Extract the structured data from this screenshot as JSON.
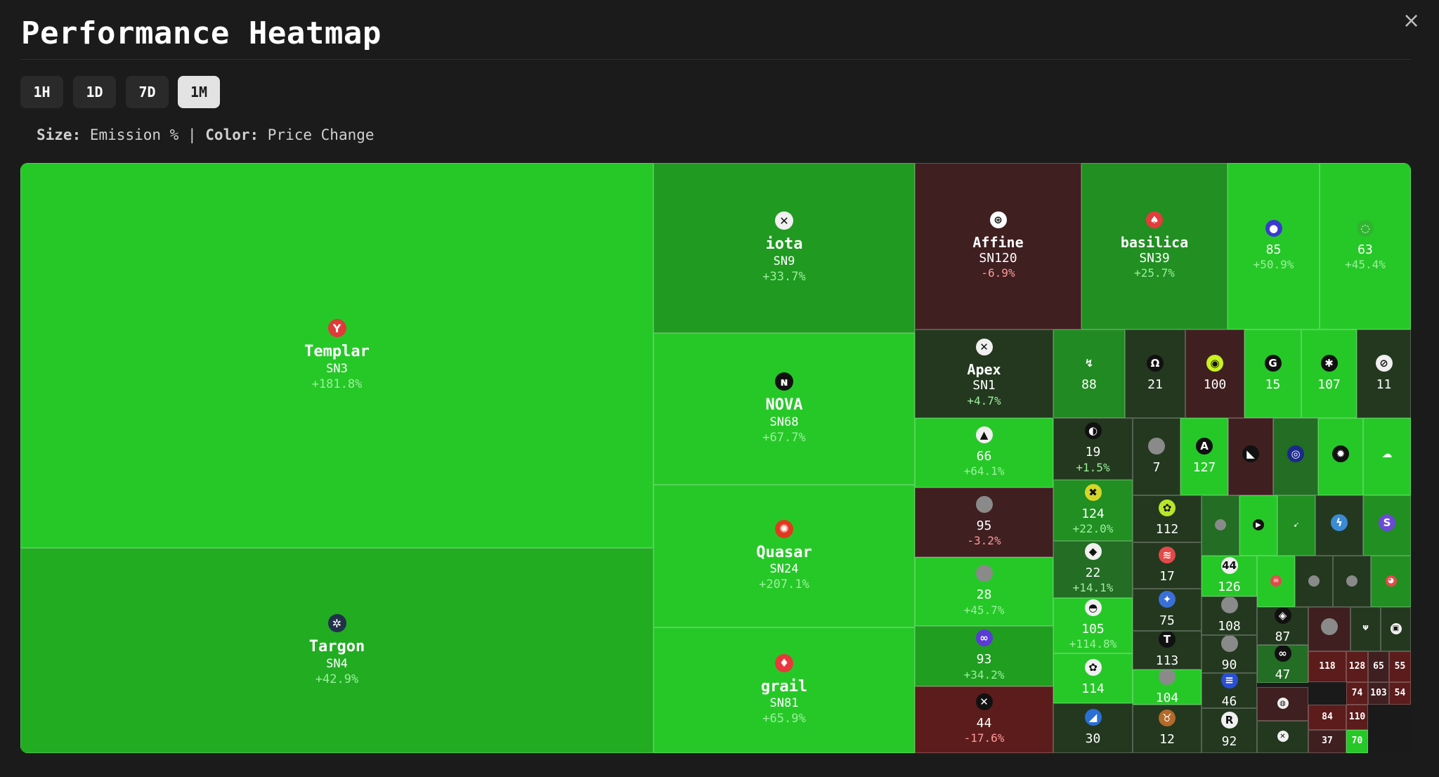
{
  "header": {
    "title": "Performance Heatmap",
    "close_label": "×"
  },
  "timeframes": [
    {
      "label": "1H",
      "active": false
    },
    {
      "label": "1D",
      "active": false
    },
    {
      "label": "7D",
      "active": false
    },
    {
      "label": "1M",
      "active": true
    }
  ],
  "legend": {
    "size_key": "Size:",
    "size_value": "Emission %",
    "separator": "|",
    "color_key": "Color:",
    "color_value": "Price Change"
  },
  "colors": {
    "pos_strong": "#26c828",
    "pos_mid": "#1f9e20",
    "pos_dark": "#236d24",
    "neutral_dark": "#23381f",
    "neg": "#3f1f20",
    "neg_strong": "#5c1c1c",
    "pct_pos": "#9cf09c",
    "pct_neg": "#ff9a9a"
  },
  "tiles": [
    {
      "id": "3",
      "name": "Templar",
      "sn": "SN3",
      "change": "+181.8%",
      "color": "#26c828",
      "icon": "templar-logo-icon",
      "glyph": "Y",
      "icon_bg": "#e03a3a"
    },
    {
      "id": "4",
      "name": "Targon",
      "sn": "SN4",
      "change": "+42.9%",
      "color": "#21ac22",
      "icon": "targon-logo-icon",
      "glyph": "✲",
      "icon_bg": "#22314a"
    },
    {
      "id": "9",
      "name": "iota",
      "sn": "SN9",
      "change": "+33.7%",
      "color": "#209a21",
      "icon": "iota-logo-icon",
      "glyph": "✕",
      "icon_bg": "#f0f0f0"
    },
    {
      "id": "68",
      "name": "NOVA",
      "sn": "SN68",
      "change": "+67.7%",
      "color": "#26c828",
      "icon": "nova-logo-icon",
      "glyph": "ɴ",
      "icon_bg": "#111111"
    },
    {
      "id": "24",
      "name": "Quasar",
      "sn": "SN24",
      "change": "+207.1%",
      "color": "#26c828",
      "icon": "quasar-logo-icon",
      "glyph": "✺",
      "icon_bg": "#e0391f"
    },
    {
      "id": "81",
      "name": "grail",
      "sn": "SN81",
      "change": "+65.9%",
      "color": "#26c828",
      "icon": "grail-logo-icon",
      "glyph": "♦",
      "icon_bg": "#e8383d"
    },
    {
      "id": "120",
      "name": "Affine",
      "sn": "SN120",
      "change": "-6.9%",
      "color": "#3f1f20",
      "icon": "affine-logo-icon",
      "glyph": "⊛",
      "icon_bg": "#ffffff"
    },
    {
      "id": "39",
      "name": "basilica",
      "sn": "SN39",
      "change": "+25.7%",
      "color": "#218f22",
      "icon": "basilica-logo-icon",
      "glyph": "♠",
      "icon_bg": "#e23c3c"
    },
    {
      "id": "85",
      "name": "",
      "sn": "85",
      "change": "+50.9%",
      "color": "#26c828",
      "icon": "subnet-85-icon",
      "glyph": "●",
      "icon_bg": "#3a3ad0"
    },
    {
      "id": "63",
      "name": "",
      "sn": "63",
      "change": "+45.4%",
      "color": "#26c828",
      "icon": "subnet-63-icon",
      "glyph": "◌",
      "icon_bg": "#2fb52f"
    },
    {
      "id": "1",
      "name": "Apex",
      "sn": "SN1",
      "change": "+4.7%",
      "color": "#23381f",
      "icon": "apex-logo-icon",
      "glyph": "✕",
      "icon_bg": "#f0f0f0"
    },
    {
      "id": "88",
      "name": "",
      "sn": "88",
      "change": "",
      "color": "#218a22",
      "icon": "subnet-88-icon",
      "glyph": "↯",
      "icon_bg": "transparent"
    },
    {
      "id": "21",
      "name": "",
      "sn": "21",
      "change": "",
      "color": "#23381f",
      "icon": "subnet-21-icon",
      "glyph": "Ω",
      "icon_bg": "#111111"
    },
    {
      "id": "100",
      "name": "",
      "sn": "100",
      "change": "",
      "color": "#3f1f20",
      "icon": "subnet-100-icon",
      "glyph": "◉",
      "icon_bg": "#c9f21f"
    },
    {
      "id": "15",
      "name": "",
      "sn": "15",
      "change": "",
      "color": "#26c828",
      "icon": "subnet-15-icon",
      "glyph": "G",
      "icon_bg": "#111111"
    },
    {
      "id": "107",
      "name": "",
      "sn": "107",
      "change": "",
      "color": "#26c828",
      "icon": "subnet-107-icon",
      "glyph": "✱",
      "icon_bg": "#111111"
    },
    {
      "id": "11",
      "name": "",
      "sn": "11",
      "change": "",
      "color": "#23381f",
      "icon": "subnet-11-icon",
      "glyph": "⊘",
      "icon_bg": "#f0f0f0"
    },
    {
      "id": "66",
      "name": "",
      "sn": "66",
      "change": "+64.1%",
      "color": "#26c828",
      "icon": "subnet-66-icon",
      "glyph": "▲",
      "icon_bg": "#f0f0f0"
    },
    {
      "id": "95",
      "name": "",
      "sn": "95",
      "change": "-3.2%",
      "color": "#3f1f20",
      "icon": "subnet-95-icon",
      "glyph": "",
      "icon_bg": "#8a8a8a"
    },
    {
      "id": "28",
      "name": "",
      "sn": "28",
      "change": "+45.7%",
      "color": "#26c828",
      "icon": "subnet-28-icon",
      "glyph": "",
      "icon_bg": "#8a8a8a"
    },
    {
      "id": "93",
      "name": "",
      "sn": "93",
      "change": "+34.2%",
      "color": "#1f9e20",
      "icon": "subnet-93-icon",
      "glyph": "∞",
      "icon_bg": "#5b3bd6"
    },
    {
      "id": "44",
      "name": "",
      "sn": "44",
      "change": "-17.6%",
      "color": "#5c1c1c",
      "icon": "subnet-44-icon",
      "glyph": "✕",
      "icon_bg": "#111111"
    },
    {
      "id": "19",
      "name": "",
      "sn": "19",
      "change": "+1.5%",
      "color": "#23381f",
      "icon": "subnet-19-icon",
      "glyph": "◐",
      "icon_bg": "#111111"
    },
    {
      "id": "124",
      "name": "",
      "sn": "124",
      "change": "+22.0%",
      "color": "#218f22",
      "icon": "subnet-124-icon",
      "glyph": "✖",
      "icon_bg": "#d6d62a"
    },
    {
      "id": "22",
      "name": "",
      "sn": "22",
      "change": "+14.1%",
      "color": "#236d24",
      "icon": "subnet-22-icon",
      "glyph": "◆",
      "icon_bg": "#f0f0f0"
    },
    {
      "id": "105",
      "name": "",
      "sn": "105",
      "change": "+114.8%",
      "color": "#26c828",
      "icon": "subnet-105-icon",
      "glyph": "◓",
      "icon_bg": "#f0f0f0"
    },
    {
      "id": "114",
      "name": "",
      "sn": "114",
      "change": "",
      "color": "#26c828",
      "icon": "subnet-114-icon",
      "glyph": "✿",
      "icon_bg": "#f0f0f0"
    },
    {
      "id": "30",
      "name": "",
      "sn": "30",
      "change": "",
      "color": "#23381f",
      "icon": "subnet-30-icon",
      "glyph": "◢",
      "icon_bg": "#2a6fd6"
    },
    {
      "id": "7",
      "name": "",
      "sn": "7",
      "change": "",
      "color": "#23381f",
      "icon": "subnet-7-icon",
      "glyph": "",
      "icon_bg": "#8a8a8a"
    },
    {
      "id": "127",
      "name": "",
      "sn": "127",
      "change": "",
      "color": "#26c828",
      "icon": "subnet-127-icon",
      "glyph": "A",
      "icon_bg": "#111111"
    },
    {
      "id": "112",
      "name": "",
      "sn": "112",
      "change": "",
      "color": "#23381f",
      "icon": "subnet-112-icon",
      "glyph": "✿",
      "icon_bg": "#b8e62a"
    },
    {
      "id": "17",
      "name": "",
      "sn": "17",
      "change": "",
      "color": "#23381f",
      "icon": "subnet-17-icon",
      "glyph": "≋",
      "icon_bg": "#e24a4a"
    },
    {
      "id": "75",
      "name": "",
      "sn": "75",
      "change": "",
      "color": "#23381f",
      "icon": "subnet-75-icon",
      "glyph": "✦",
      "icon_bg": "#3a6fd6"
    },
    {
      "id": "113",
      "name": "",
      "sn": "113",
      "change": "",
      "color": "#23381f",
      "icon": "subnet-113-icon",
      "glyph": "T",
      "icon_bg": "#111111"
    },
    {
      "id": "104",
      "name": "",
      "sn": "104",
      "change": "",
      "color": "#26c828",
      "icon": "subnet-104-icon",
      "glyph": "",
      "icon_bg": "#8a8a8a"
    },
    {
      "id": "12",
      "name": "",
      "sn": "12",
      "change": "",
      "color": "#23381f",
      "icon": "subnet-12-icon",
      "glyph": "♉",
      "icon_bg": "#b36a2a"
    },
    {
      "id": "126",
      "name": "",
      "sn": "126",
      "change": "",
      "color": "#26c828",
      "icon": "subnet-126-icon",
      "glyph": "44",
      "icon_bg": "#f0f0f0"
    },
    {
      "id": "108",
      "name": "",
      "sn": "108",
      "change": "",
      "color": "#23381f",
      "icon": "subnet-108-icon",
      "glyph": "",
      "icon_bg": "#8a8a8a"
    },
    {
      "id": "90",
      "name": "",
      "sn": "90",
      "change": "",
      "color": "#23381f",
      "icon": "subnet-90-icon",
      "glyph": "",
      "icon_bg": "#8a8a8a"
    },
    {
      "id": "46",
      "name": "",
      "sn": "46",
      "change": "",
      "color": "#23381f",
      "icon": "subnet-46-icon",
      "glyph": "≡",
      "icon_bg": "#2a4fd6"
    },
    {
      "id": "92",
      "name": "",
      "sn": "92",
      "change": "",
      "color": "#23381f",
      "icon": "subnet-92-icon",
      "glyph": "R",
      "icon_bg": "#f0f0f0"
    },
    {
      "id": "87",
      "name": "",
      "sn": "87",
      "change": "",
      "color": "#23381f",
      "icon": "subnet-87-icon",
      "glyph": "◈",
      "icon_bg": "#111111"
    },
    {
      "id": "47",
      "name": "",
      "sn": "47",
      "change": "",
      "color": "#236d24",
      "icon": "subnet-47-icon",
      "glyph": "∞",
      "icon_bg": "#111111"
    },
    {
      "id": "118",
      "name": "",
      "sn": "118",
      "change": "",
      "color": "#5c1c1c",
      "icon": "",
      "glyph": "",
      "icon_bg": ""
    },
    {
      "id": "128",
      "name": "",
      "sn": "128",
      "change": "",
      "color": "#5c1c1c",
      "icon": "",
      "glyph": "",
      "icon_bg": ""
    },
    {
      "id": "65",
      "name": "",
      "sn": "65",
      "change": "",
      "color": "#3f1f20",
      "icon": "",
      "glyph": "",
      "icon_bg": ""
    },
    {
      "id": "55",
      "name": "",
      "sn": "55",
      "change": "",
      "color": "#5c1c1c",
      "icon": "",
      "glyph": "",
      "icon_bg": ""
    },
    {
      "id": "74",
      "name": "",
      "sn": "74",
      "change": "",
      "color": "#5c1c1c",
      "icon": "",
      "glyph": "",
      "icon_bg": ""
    },
    {
      "id": "103",
      "name": "",
      "sn": "103",
      "change": "",
      "color": "#3f1f20",
      "icon": "",
      "glyph": "",
      "icon_bg": ""
    },
    {
      "id": "54",
      "name": "",
      "sn": "54",
      "change": "",
      "color": "#5c1c1c",
      "icon": "",
      "glyph": "",
      "icon_bg": ""
    },
    {
      "id": "84",
      "name": "",
      "sn": "84",
      "change": "",
      "color": "#5c1c1c",
      "icon": "",
      "glyph": "",
      "icon_bg": ""
    },
    {
      "id": "110",
      "name": "",
      "sn": "110",
      "change": "",
      "color": "#5c1c1c",
      "icon": "",
      "glyph": "",
      "icon_bg": ""
    },
    {
      "id": "37",
      "name": "",
      "sn": "37",
      "change": "",
      "color": "#3f1f20",
      "icon": "",
      "glyph": "",
      "icon_bg": ""
    },
    {
      "id": "70",
      "name": "",
      "sn": "70",
      "change": "",
      "color": "#26c828",
      "icon": "",
      "glyph": "",
      "icon_bg": ""
    },
    {
      "id": "u1",
      "name": "",
      "sn": "",
      "change": "",
      "color": "#3f1f20",
      "icon": "hooded-figure-icon",
      "glyph": "◣",
      "icon_bg": "#111111"
    },
    {
      "id": "u2",
      "name": "",
      "sn": "",
      "change": "",
      "color": "#236d24",
      "icon": "swirl-icon",
      "glyph": "◎",
      "icon_bg": "#1a2a8a"
    },
    {
      "id": "u3",
      "name": "",
      "sn": "",
      "change": "",
      "color": "#26c828",
      "icon": "flame-icon",
      "glyph": "✹",
      "icon_bg": "#111111"
    },
    {
      "id": "u4",
      "name": "",
      "sn": "",
      "change": "",
      "color": "#26c828",
      "icon": "cloud-icon",
      "glyph": "☁",
      "icon_bg": "transparent"
    },
    {
      "id": "u5",
      "name": "",
      "sn": "",
      "change": "",
      "color": "#236d24",
      "icon": "placeholder-icon",
      "glyph": "",
      "icon_bg": "#8a8a8a"
    },
    {
      "id": "u6",
      "name": "",
      "sn": "",
      "change": "",
      "color": "#26c828",
      "icon": "play-icon",
      "glyph": "▶",
      "icon_bg": "#111111"
    },
    {
      "id": "u7",
      "name": "",
      "sn": "",
      "change": "",
      "color": "#218f22",
      "icon": "arrow-icon",
      "glyph": "➹",
      "icon_bg": "transparent"
    },
    {
      "id": "u8",
      "name": "",
      "sn": "",
      "change": "",
      "color": "#23381f",
      "icon": "bolt-icon",
      "glyph": "ϟ",
      "icon_bg": "#3a8ad6"
    },
    {
      "id": "u9",
      "name": "",
      "sn": "",
      "change": "",
      "color": "#218f22",
      "icon": "sx-icon",
      "glyph": "S",
      "icon_bg": "#6a4ad6"
    },
    {
      "id": "u10",
      "name": "",
      "sn": "",
      "change": "",
      "color": "#26c828",
      "icon": "skull-icon",
      "glyph": "☠",
      "icon_bg": "#e24a4a"
    },
    {
      "id": "u11",
      "name": "",
      "sn": "",
      "change": "",
      "color": "#23381f",
      "icon": "placeholder-icon",
      "glyph": "",
      "icon_bg": "#8a8a8a"
    },
    {
      "id": "u12",
      "name": "",
      "sn": "",
      "change": "",
      "color": "#23381f",
      "icon": "placeholder-icon",
      "glyph": "",
      "icon_bg": "#8a8a8a"
    },
    {
      "id": "u13",
      "name": "",
      "sn": "",
      "change": "",
      "color": "#218f22",
      "icon": "mask-icon",
      "glyph": "◕",
      "icon_bg": "#e24a4a"
    },
    {
      "id": "u14",
      "name": "",
      "sn": "",
      "change": "",
      "color": "#3f1f20",
      "icon": "placeholder-icon",
      "glyph": "",
      "icon_bg": "#8a8a8a"
    },
    {
      "id": "u15",
      "name": "",
      "sn": "",
      "change": "",
      "color": "#23381f",
      "icon": "trident-icon",
      "glyph": "Ψ",
      "icon_bg": "transparent"
    },
    {
      "id": "u16",
      "name": "",
      "sn": "",
      "change": "",
      "color": "#23381f",
      "icon": "robot-icon",
      "glyph": "▣",
      "icon_bg": "#f0f0f0"
    },
    {
      "id": "u17",
      "name": "",
      "sn": "",
      "change": "",
      "color": "#3f1f20",
      "icon": "knot-icon",
      "glyph": "✤",
      "icon_bg": "transparent"
    },
    {
      "id": "u18",
      "name": "",
      "sn": "",
      "change": "",
      "color": "#3f1f20",
      "icon": "dotted-circle-icon",
      "glyph": "◍",
      "icon_bg": "#f0f0f0"
    },
    {
      "id": "u19",
      "name": "",
      "sn": "",
      "change": "",
      "color": "#23381f",
      "icon": "x-logo-icon",
      "glyph": "✕",
      "icon_bg": "#f0f0f0"
    }
  ]
}
